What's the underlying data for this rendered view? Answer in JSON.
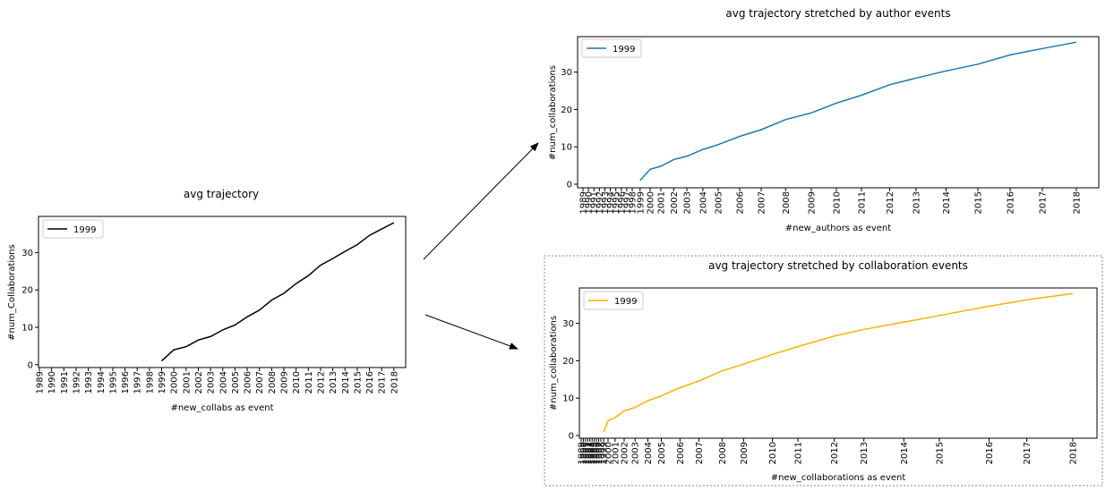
{
  "years": [
    "1989",
    "1990",
    "1991",
    "1992",
    "1993",
    "1994",
    "1995",
    "1996",
    "1997",
    "1998",
    "1999",
    "2000",
    "2001",
    "2002",
    "2003",
    "2004",
    "2005",
    "2006",
    "2007",
    "2008",
    "2009",
    "2010",
    "2011",
    "2012",
    "2013",
    "2014",
    "2015",
    "2016",
    "2017",
    "2018"
  ],
  "chart_data": [
    {
      "type": "line",
      "title": "avg trajectory",
      "xlabel": "#new_collabs as event",
      "ylabel": "#num_Collaborations",
      "x": [
        1999,
        2000,
        2001,
        2002,
        2003,
        2004,
        2005,
        2006,
        2007,
        2008,
        2009,
        2010,
        2011,
        2012,
        2013,
        2014,
        2015,
        2016,
        2017,
        2018
      ],
      "series": [
        {
          "name": "1999",
          "color": "#000000",
          "values": [
            1.0,
            4.0,
            4.8,
            6.6,
            7.5,
            9.3,
            10.6,
            12.8,
            14.6,
            17.3,
            19.1,
            21.7,
            23.8,
            26.6,
            28.4,
            30.3,
            32.1,
            34.6,
            36.3,
            38.0
          ]
        }
      ],
      "ylim": [
        0,
        40
      ],
      "yticks": [
        0,
        10,
        20,
        30
      ],
      "xtick_labels": "years",
      "legend": "top-left",
      "grid": false
    },
    {
      "type": "line",
      "title": "avg trajectory stretched by author events",
      "xlabel": "#new_authors as event",
      "ylabel": "#num_collaborations",
      "x": [
        1999,
        2000,
        2001,
        2002,
        2003,
        2004,
        2005,
        2006,
        2007,
        2008,
        2009,
        2010,
        2011,
        2012,
        2013,
        2014,
        2015,
        2016,
        2017,
        2018
      ],
      "series": [
        {
          "name": "1999",
          "color": "#1f77b4",
          "values": [
            1.0,
            4.0,
            4.8,
            6.6,
            7.5,
            9.3,
            10.6,
            12.8,
            14.6,
            17.3,
            19.1,
            21.7,
            23.8,
            26.6,
            28.4,
            30.3,
            32.1,
            34.6,
            36.3,
            38.0
          ]
        }
      ],
      "ylim": [
        0,
        40
      ],
      "yticks": [
        0,
        10,
        20,
        30
      ],
      "xtick_labels": "years",
      "legend": "top-left",
      "grid": false
    },
    {
      "type": "line",
      "title": "avg trajectory stretched by collaboration events",
      "xlabel": "#new_collaborations as event",
      "ylabel": "#num_collaborations",
      "x": [
        1999,
        2000,
        2001,
        2002,
        2003,
        2004,
        2005,
        2006,
        2007,
        2008,
        2009,
        2010,
        2011,
        2012,
        2013,
        2014,
        2015,
        2016,
        2017,
        2018
      ],
      "series": [
        {
          "name": "1999",
          "color": "#ffb000",
          "values": [
            1.0,
            4.0,
            4.8,
            6.6,
            7.5,
            9.3,
            10.6,
            12.8,
            14.6,
            17.3,
            19.1,
            21.7,
            23.8,
            26.6,
            28.4,
            30.3,
            32.1,
            34.6,
            36.3,
            38.0
          ]
        }
      ],
      "ylim": [
        0,
        40
      ],
      "yticks": [
        0,
        10,
        20,
        30
      ],
      "xtick_labels": "years",
      "legend": "top-left",
      "grid": false
    }
  ]
}
